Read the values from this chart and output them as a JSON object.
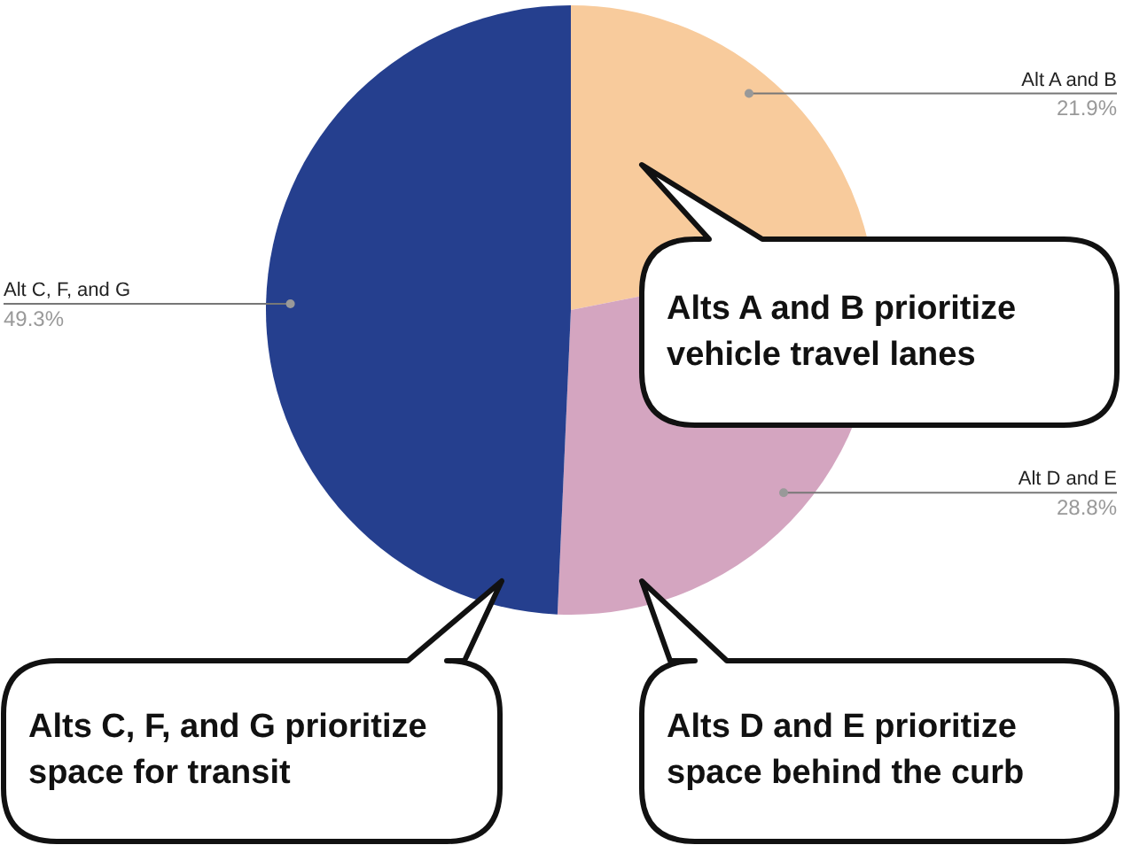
{
  "chart_data": {
    "type": "pie",
    "categories": [
      "Alt A and B",
      "Alt D and E",
      "Alt C, F, and G"
    ],
    "values": [
      21.9,
      28.8,
      49.3
    ],
    "value_labels": [
      "21.9%",
      "28.8%",
      "49.3%"
    ],
    "colors": [
      "#f8cb9c",
      "#d4a5c0",
      "#253f8e"
    ],
    "legend": false,
    "annotations": [
      "Alts A and B prioritize vehicle travel lanes",
      "Alts C, F, and G prioritize space for transit",
      "Alts D and E prioritize space behind the curb"
    ]
  }
}
